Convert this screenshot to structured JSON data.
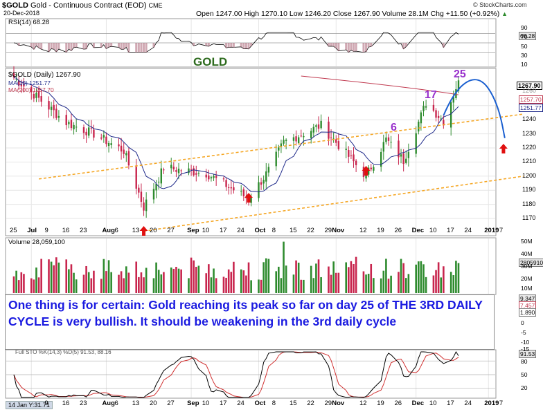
{
  "header": {
    "symbol": "$GOLD",
    "name": "Gold - Continuous Contract (EOD)",
    "exchange": "CME",
    "date": "20-Dec-2018",
    "watermark": "© StockCharts.com",
    "ohlc": "Open 1247.00  High 1270.10  Low 1246.20  Close 1267.90  Volume 28.1M  Chg +11.50 (+0.92%)",
    "up_arrow": "▲"
  },
  "rsi_panel": {
    "label": "RSI(14) 68.28",
    "ticks": [
      "90",
      "70",
      "50",
      "30",
      "10"
    ],
    "value_tag": "68.28",
    "overlay_text": "GOLD"
  },
  "price_panel": {
    "label": "$GOLD (Daily) 1267.90",
    "ma10_label": "MA(10) 1251.77",
    "ma200_label": "MA(200) 1257.70",
    "ticks": [
      "1260",
      "1250",
      "1240",
      "1230",
      "1220",
      "1210",
      "1200",
      "1190",
      "1180",
      "1170"
    ],
    "tags": [
      "1267.90",
      "1257.70",
      "1251.77"
    ],
    "cycle_labels": [
      "6",
      "17",
      "25"
    ]
  },
  "date_axis": [
    "25",
    "Jul",
    "9",
    "16",
    "23",
    "Aug",
    "6",
    "13",
    "20",
    "27",
    "Sep",
    "10",
    "17",
    "24",
    "Oct",
    "8",
    "15",
    "22",
    "29",
    "Nov",
    "12",
    "19",
    "26",
    "Dec",
    "10",
    "17",
    "24",
    "2019",
    "7"
  ],
  "volume_panel": {
    "label": "Volume 28,059,100",
    "ticks": [
      "50M",
      "40M",
      "30M",
      "20M",
      "10M"
    ],
    "value_tag": "28059100"
  },
  "macd_panel": {
    "ticks": [
      "10",
      "5",
      "0",
      "-5",
      "-10",
      "-15"
    ],
    "tags": [
      "9.347",
      "7.457",
      "1.890"
    ]
  },
  "stoch_panel": {
    "label": "Full STO %K(14,3) %D(5) 91.53, 88.16",
    "ticks": [
      "80",
      "50",
      "20"
    ],
    "value_tag": "91.53",
    "axis_first": "14 Jan Y:31.71"
  },
  "callout": {
    "text": "One thing is for certain:  Gold reaching its peak so far on day 25 of THE 3RD DAILY CYCLE  is very bullish.  It should be weakening in the 3rd daily cycle"
  },
  "colors": {
    "up": "#2e8b2e",
    "down": "#c8254d",
    "ma10": "#1f2a8a",
    "ma200": "#c0394f",
    "channel": "#f5a623",
    "projection": "#1a5fd0",
    "arrow": "#e01010",
    "cycle_label": "#9932cc",
    "gold_text": "#2e6b1e"
  },
  "chart_data": {
    "type": "candlestick",
    "ylabel": "",
    "price_range": [
      1165,
      1275
    ],
    "start_date": "2018-06-25",
    "end_date": "2018-12-20",
    "close_samples": [
      {
        "date": "2018-06-25",
        "close": 1270
      },
      {
        "date": "2018-07-03",
        "close": 1258
      },
      {
        "date": "2018-07-16",
        "close": 1238
      },
      {
        "date": "2018-07-27",
        "close": 1230
      },
      {
        "date": "2018-08-08",
        "close": 1218
      },
      {
        "date": "2018-08-16",
        "close": 1178
      },
      {
        "date": "2018-08-24",
        "close": 1206
      },
      {
        "date": "2018-09-10",
        "close": 1202
      },
      {
        "date": "2018-09-27",
        "close": 1184
      },
      {
        "date": "2018-10-05",
        "close": 1204
      },
      {
        "date": "2018-10-11",
        "close": 1224
      },
      {
        "date": "2018-10-26",
        "close": 1236
      },
      {
        "date": "2018-11-13",
        "close": 1200
      },
      {
        "date": "2018-11-21",
        "close": 1226
      },
      {
        "date": "2018-11-28",
        "close": 1211
      },
      {
        "date": "2018-12-07",
        "close": 1252
      },
      {
        "date": "2018-12-14",
        "close": 1239
      },
      {
        "date": "2018-12-20",
        "close": 1267.9
      }
    ],
    "series": [
      {
        "name": "MA(10)",
        "last": 1251.77
      },
      {
        "name": "MA(200)",
        "last": 1257.7
      }
    ],
    "rsi_last": 68.28,
    "volume_last": 28059100,
    "stochastic_last": [
      91.53,
      88.16
    ],
    "cycle_markers": [
      {
        "label": "6",
        "date": "2018-11-23"
      },
      {
        "label": "17",
        "date": "2018-12-10"
      },
      {
        "label": "25",
        "date": "2018-12-20"
      }
    ],
    "arrow_markers": [
      "2018-08-16",
      "2018-09-27",
      "2018-11-13",
      "2019-01-07"
    ]
  }
}
